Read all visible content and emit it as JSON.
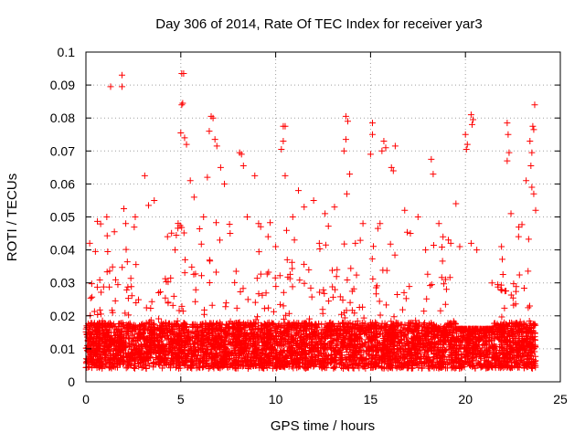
{
  "chart_data": {
    "type": "scatter",
    "title": "Day 306 of 2014, Rate Of TEC Index for receiver yar3",
    "xlabel": "GPS time / hours",
    "ylabel": "ROTI / TECUs",
    "xlim": [
      0,
      25
    ],
    "ylim": [
      0,
      0.1
    ],
    "xticks": [
      "0",
      "5",
      "10",
      "15",
      "20",
      "25"
    ],
    "yticks": [
      "0",
      "0.01",
      "0.02",
      "0.03",
      "0.04",
      "0.05",
      "0.06",
      "0.07",
      "0.08",
      "0.09",
      "0.1"
    ],
    "grid": true,
    "marker": "+",
    "point_color": "#ff0000",
    "baseline_band": [
      0.004,
      0.018
    ],
    "series": [
      {
        "points": [
          [
            1.3,
            0.0895
          ],
          [
            1.9,
            0.093
          ],
          [
            1.9,
            0.0895
          ],
          [
            3.1,
            0.0625
          ],
          [
            5.05,
            0.0935
          ],
          [
            5.15,
            0.0935
          ],
          [
            5.1,
            0.0845
          ],
          [
            5.05,
            0.084
          ],
          [
            5.0,
            0.0755
          ],
          [
            5.2,
            0.074
          ],
          [
            5.3,
            0.072
          ],
          [
            6.6,
            0.0805
          ],
          [
            6.7,
            0.08
          ],
          [
            6.5,
            0.076
          ],
          [
            6.8,
            0.0735
          ],
          [
            6.9,
            0.0715
          ],
          [
            6.4,
            0.062
          ],
          [
            7.1,
            0.065
          ],
          [
            8.1,
            0.0695
          ],
          [
            8.2,
            0.069
          ],
          [
            8.3,
            0.0655
          ],
          [
            8.9,
            0.0625
          ],
          [
            10.4,
            0.0775
          ],
          [
            10.5,
            0.0775
          ],
          [
            10.4,
            0.073
          ],
          [
            10.3,
            0.0705
          ],
          [
            10.5,
            0.0625
          ],
          [
            11.2,
            0.058
          ],
          [
            13.7,
            0.0805
          ],
          [
            13.8,
            0.079
          ],
          [
            13.7,
            0.0735
          ],
          [
            13.6,
            0.07
          ],
          [
            13.9,
            0.063
          ],
          [
            13.75,
            0.057
          ],
          [
            15.1,
            0.0785
          ],
          [
            15.1,
            0.075
          ],
          [
            15.0,
            0.069
          ],
          [
            15.7,
            0.073
          ],
          [
            15.8,
            0.071
          ],
          [
            15.6,
            0.07
          ],
          [
            16.3,
            0.0715
          ],
          [
            16.1,
            0.065
          ],
          [
            16.2,
            0.064
          ],
          [
            18.2,
            0.0675
          ],
          [
            18.3,
            0.063
          ],
          [
            19.5,
            0.054
          ],
          [
            20.0,
            0.075
          ],
          [
            20.1,
            0.072
          ],
          [
            20.05,
            0.0705
          ],
          [
            20.3,
            0.081
          ],
          [
            20.4,
            0.0795
          ],
          [
            20.35,
            0.078
          ],
          [
            22.2,
            0.0785
          ],
          [
            22.25,
            0.075
          ],
          [
            22.3,
            0.0695
          ],
          [
            22.2,
            0.067
          ],
          [
            23.4,
            0.073
          ],
          [
            23.55,
            0.0775
          ],
          [
            23.65,
            0.084
          ],
          [
            23.6,
            0.0765
          ],
          [
            23.5,
            0.0695
          ],
          [
            23.45,
            0.0655
          ],
          [
            23.5,
            0.059
          ],
          [
            23.6,
            0.057
          ],
          [
            0.2,
            0.042
          ],
          [
            0.5,
            0.0395
          ],
          [
            1.1,
            0.05
          ],
          [
            1.5,
            0.0455
          ],
          [
            2.0,
            0.0525
          ],
          [
            2.1,
            0.048
          ],
          [
            2.6,
            0.05
          ],
          [
            3.3,
            0.0535
          ],
          [
            3.6,
            0.055
          ],
          [
            4.3,
            0.044
          ],
          [
            4.7,
            0.04
          ],
          [
            5.5,
            0.061
          ],
          [
            5.7,
            0.056
          ],
          [
            6.2,
            0.05
          ],
          [
            7.3,
            0.06
          ],
          [
            7.6,
            0.045
          ],
          [
            8.5,
            0.05
          ],
          [
            9.1,
            0.048
          ],
          [
            9.6,
            0.044
          ],
          [
            10.0,
            0.041
          ],
          [
            10.9,
            0.05
          ],
          [
            11.5,
            0.053
          ],
          [
            12.0,
            0.055
          ],
          [
            12.3,
            0.042
          ],
          [
            12.6,
            0.051
          ],
          [
            13.1,
            0.053
          ],
          [
            14.2,
            0.042
          ],
          [
            14.6,
            0.048
          ],
          [
            15.5,
            0.048
          ],
          [
            16.8,
            0.052
          ],
          [
            17.1,
            0.045
          ],
          [
            17.5,
            0.05
          ],
          [
            17.9,
            0.04
          ],
          [
            18.6,
            0.048
          ],
          [
            19.1,
            0.043
          ],
          [
            19.7,
            0.041
          ],
          [
            20.3,
            0.042
          ],
          [
            20.6,
            0.04
          ],
          [
            21.4,
            0.03
          ],
          [
            21.9,
            0.041
          ],
          [
            22.4,
            0.051
          ],
          [
            22.8,
            0.044
          ],
          [
            23.2,
            0.061
          ],
          [
            23.7,
            0.052
          ]
        ]
      }
    ]
  }
}
